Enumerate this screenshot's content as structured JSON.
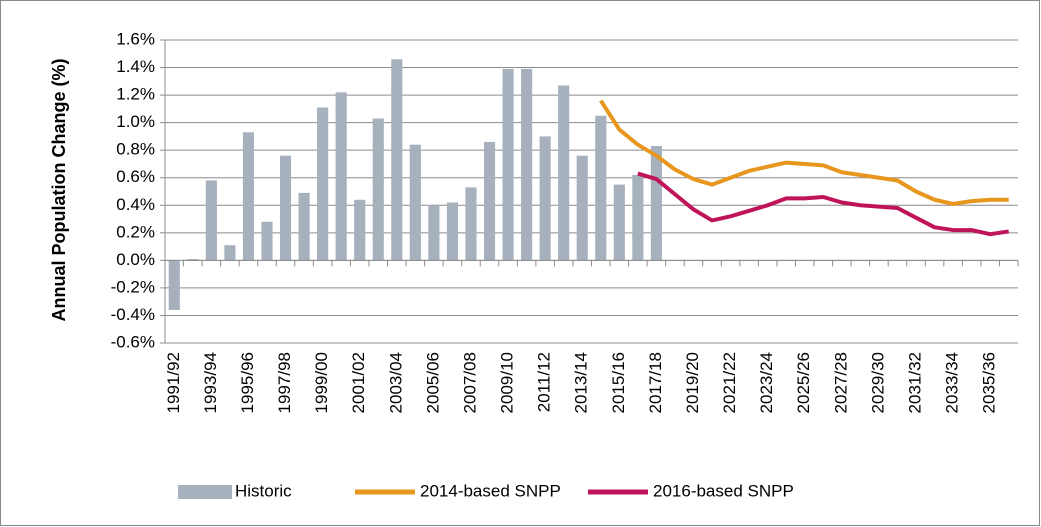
{
  "chart_data": {
    "type": "bar",
    "y_label": "Annual Population Change (%)",
    "categories": [
      "1991/92",
      null,
      "1993/94",
      null,
      "1995/96",
      null,
      "1997/98",
      null,
      "1999/00",
      null,
      "2001/02",
      null,
      "2003/04",
      null,
      "2005/06",
      null,
      "2007/08",
      null,
      "2009/10",
      null,
      "2011/12",
      null,
      "2013/14",
      null,
      "2015/16",
      null,
      "2017/18",
      null,
      "2019/20",
      null,
      "2021/22",
      null,
      "2023/24",
      null,
      "2025/26",
      null,
      "2027/28",
      null,
      "2029/30",
      null,
      "2031/32",
      null,
      "2033/34",
      null,
      "2035/36",
      null
    ],
    "series": [
      {
        "name": "Historic",
        "type": "bar",
        "color": "#a6b1bd",
        "values": [
          -0.36,
          0.01,
          0.58,
          0.11,
          0.93,
          0.28,
          0.76,
          0.49,
          1.11,
          1.22,
          0.44,
          1.03,
          1.46,
          0.84,
          0.4,
          0.42,
          0.53,
          0.86,
          1.39,
          1.39,
          0.9,
          1.27,
          0.76,
          1.05,
          0.55,
          0.62,
          0.83,
          null,
          null,
          null,
          null,
          null,
          null,
          null,
          null,
          null,
          null,
          null,
          null,
          null,
          null,
          null,
          null,
          null,
          null,
          null
        ]
      },
      {
        "name": "2014-based SNPP",
        "type": "line",
        "color": "#e8961e",
        "values": [
          null,
          null,
          null,
          null,
          null,
          null,
          null,
          null,
          null,
          null,
          null,
          null,
          null,
          null,
          null,
          null,
          null,
          null,
          null,
          null,
          null,
          null,
          null,
          1.16,
          0.95,
          0.84,
          0.76,
          0.66,
          0.59,
          0.55,
          0.6,
          0.65,
          0.68,
          0.71,
          0.7,
          0.69,
          0.64,
          0.62,
          0.6,
          0.58,
          0.5,
          0.44,
          0.41,
          0.43,
          0.44,
          0.44
        ]
      },
      {
        "name": "2016-based SNPP",
        "type": "line",
        "color": "#c0145a",
        "values": [
          null,
          null,
          null,
          null,
          null,
          null,
          null,
          null,
          null,
          null,
          null,
          null,
          null,
          null,
          null,
          null,
          null,
          null,
          null,
          null,
          null,
          null,
          null,
          null,
          null,
          0.63,
          0.59,
          0.48,
          0.37,
          0.29,
          0.32,
          0.36,
          0.4,
          0.45,
          0.45,
          0.46,
          0.42,
          0.4,
          0.39,
          0.38,
          0.31,
          0.24,
          0.22,
          0.22,
          0.19,
          0.21
        ]
      }
    ],
    "ylim": [
      -0.6,
      1.6
    ],
    "yticks": [
      {
        "value": -0.6,
        "label": "-0.6%"
      },
      {
        "value": -0.4,
        "label": "-0.4%"
      },
      {
        "value": -0.2,
        "label": "-0.2%"
      },
      {
        "value": 0,
        "label": "0.0%"
      },
      {
        "value": 0.2,
        "label": "0.2%"
      },
      {
        "value": 0.4,
        "label": "0.4%"
      },
      {
        "value": 0.6,
        "label": "0.6%"
      },
      {
        "value": 0.8,
        "label": "0.8%"
      },
      {
        "value": 1.0,
        "label": "1.0%"
      },
      {
        "value": 1.2,
        "label": "1.2%"
      },
      {
        "value": 1.4,
        "label": "1.4%"
      },
      {
        "value": 1.6,
        "label": "1.6%"
      }
    ],
    "grid": true,
    "legend": "bottom"
  }
}
